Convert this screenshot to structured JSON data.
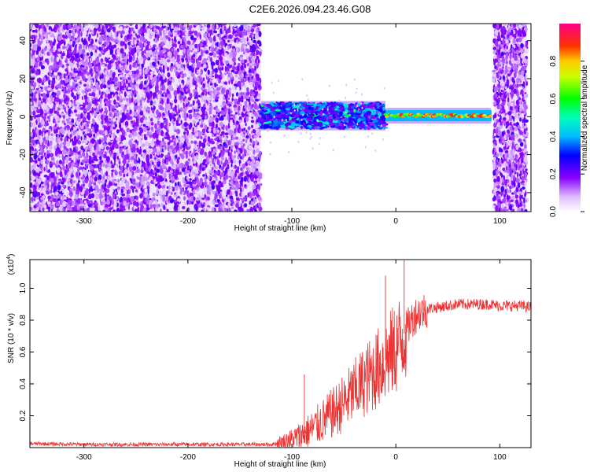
{
  "title": "C2E6.2026.094.23.46.G08",
  "chart_data": [
    {
      "type": "heatmap",
      "name": "spectrogram",
      "xlabel": "Height of straight line (km)",
      "ylabel": "Frequency (Hz)",
      "xlim": [
        -352,
        130
      ],
      "ylim": [
        -50,
        49
      ],
      "xticks": [
        -300,
        -200,
        -100,
        0,
        100
      ],
      "yticks": [
        -40,
        -20,
        0,
        20,
        40
      ],
      "colorbar": {
        "label": "Normalized spectral amplitude",
        "range": [
          0,
          1
        ],
        "ticks": [
          "0.0",
          "0.2",
          "0.4",
          "0.6",
          "0.8"
        ]
      },
      "regions": [
        {
          "x": [
            -352,
            -130
          ],
          "freq": [
            -50,
            49
          ],
          "kind": "broadband noise",
          "amplitude": [
            0.05,
            0.2
          ]
        },
        {
          "x": [
            -130,
            -10
          ],
          "freq": [
            -6,
            7
          ],
          "kind": "signal band",
          "amplitude": [
            0.15,
            0.6
          ]
        },
        {
          "x": [
            -10,
            92
          ],
          "freq": [
            -2,
            3
          ],
          "kind": "strong carrier",
          "amplitude": [
            0.5,
            0.95
          ]
        },
        {
          "x": [
            94,
            126
          ],
          "freq": [
            -50,
            49
          ],
          "kind": "broadband noise",
          "amplitude": [
            0.05,
            0.2
          ]
        }
      ]
    },
    {
      "type": "line",
      "name": "snr",
      "xlabel": "Height of straight line (km)",
      "ylabel": "SNR (10 * v/v)",
      "scale_label": "(x10",
      "scale_exp": "4",
      "xlim": [
        -352,
        130
      ],
      "ylim": [
        0,
        1.18
      ],
      "xticks": [
        -300,
        -200,
        -100,
        0,
        100
      ],
      "yticks": [
        "0.2",
        "0.4",
        "0.6",
        "0.8",
        "1.0"
      ],
      "color": "#ee3333",
      "series": [
        {
          "name": "SNR",
          "x": [
            -352,
            -300,
            -250,
            -200,
            -150,
            -120,
            -110,
            -100,
            -90,
            -80,
            -70,
            -60,
            -50,
            -40,
            -30,
            -20,
            -10,
            0,
            5,
            10,
            15,
            20,
            30,
            40,
            50,
            60,
            70,
            80,
            90,
            100,
            110,
            120,
            130
          ],
          "values": [
            0.025,
            0.02,
            0.02,
            0.02,
            0.02,
            0.02,
            0.03,
            0.05,
            0.08,
            0.12,
            0.17,
            0.22,
            0.28,
            0.35,
            0.42,
            0.48,
            0.55,
            0.62,
            0.68,
            0.74,
            0.8,
            0.84,
            0.87,
            0.88,
            0.89,
            0.9,
            0.9,
            0.9,
            0.9,
            0.89,
            0.89,
            0.89,
            0.88
          ]
        }
      ],
      "annotations": [
        {
          "x": -10,
          "value": 1.08
        },
        {
          "x": 8,
          "value": 1.18
        },
        {
          "x": -88,
          "value": 0.46
        }
      ]
    }
  ]
}
